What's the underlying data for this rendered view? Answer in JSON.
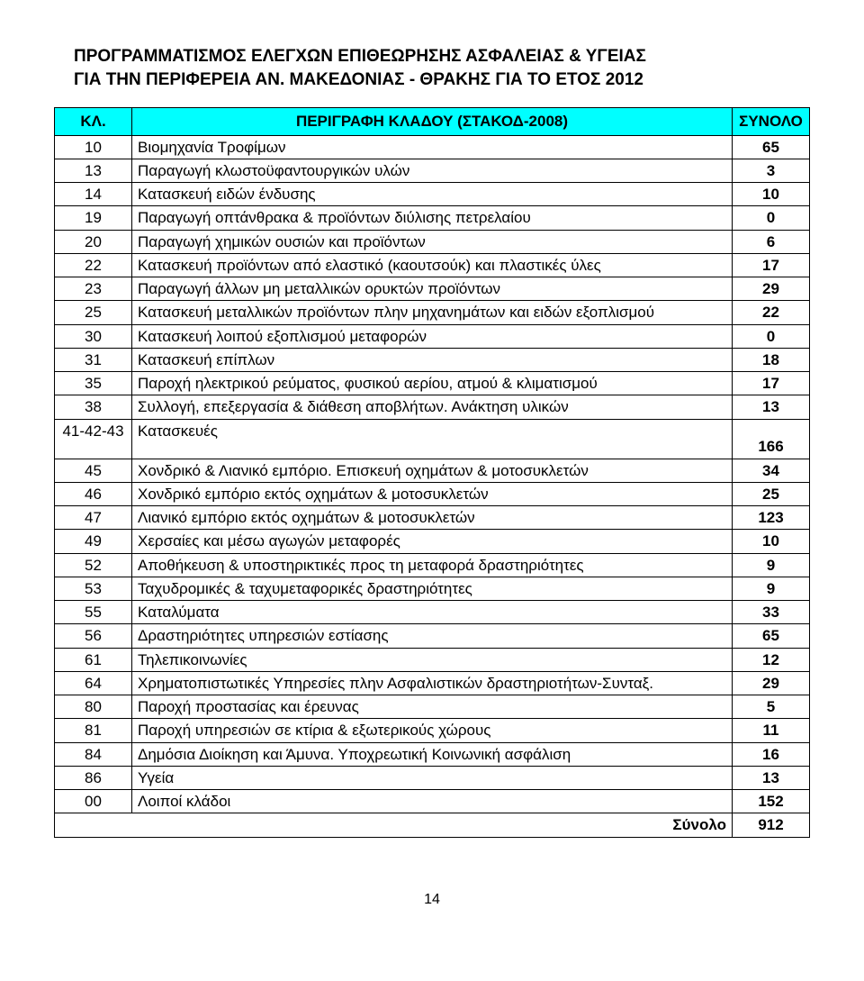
{
  "title_line1": "ΠΡΟΓΡΑΜΜΑΤΙΣΜΟΣ ΕΛΕΓΧΩΝ ΕΠΙΘΕΩΡΗΣΗΣ ΑΣΦΑΛΕΙΑΣ & ΥΓΕΙΑΣ",
  "title_line2": "ΓΙΑ ΤΗΝ ΠΕΡΙΦΕΡΕΙΑ ΑΝ. ΜΑΚΕΔΟΝΙΑΣ - ΘΡΑΚΗΣ ΓΙΑ ΤΟ ΕΤΟΣ 2012",
  "headers": {
    "kl": "ΚΛ.",
    "desc": "ΠΕΡΙΓΡΑΦΗ ΚΛΑΔΟΥ (ΣΤΑΚΟΔ-2008)",
    "total": "ΣΥΝΟΛΟ"
  },
  "rows": [
    {
      "code": "10",
      "desc": "Βιομηχανία Τροφίμων",
      "val": "65"
    },
    {
      "code": "13",
      "desc": "Παραγωγή κλωστοϋφαντουργικών υλών",
      "val": "3"
    },
    {
      "code": "14",
      "desc": "Κατασκευή ειδών ένδυσης",
      "val": "10"
    },
    {
      "code": "19",
      "desc": "Παραγωγή οπτάνθρακα & προϊόντων διύλισης πετρελαίου",
      "val": "0"
    },
    {
      "code": "20",
      "desc": "Παραγωγή χημικών ουσιών και προϊόντων",
      "val": "6"
    },
    {
      "code": "22",
      "desc": "Κατασκευή προϊόντων από ελαστικό (καουτσούκ) και πλαστικές ύλες",
      "val": "17"
    },
    {
      "code": "23",
      "desc": "Παραγωγή άλλων μη μεταλλικών ορυκτών προϊόντων",
      "val": "29"
    },
    {
      "code": "25",
      "desc": "Κατασκευή μεταλλικών προϊόντων πλην μηχανημάτων και ειδών εξοπλισμού",
      "val": "22"
    },
    {
      "code": "30",
      "desc": "Κατασκευή λοιπού εξοπλισμού μεταφορών",
      "val": "0"
    },
    {
      "code": "31",
      "desc": "Κατασκευή επίπλων",
      "val": "18"
    },
    {
      "code": "35",
      "desc": "Παροχή ηλεκτρικού ρεύματος, φυσικού αερίου, ατμού & κλιματισμού",
      "val": "17"
    },
    {
      "code": "38",
      "desc": "Συλλογή, επεξεργασία & διάθεση αποβλήτων. Ανάκτηση υλικών",
      "val": "13"
    },
    {
      "code": "41-42-43",
      "desc": "Κατασκευές",
      "val": "166",
      "double": true
    },
    {
      "code": "45",
      "desc": "Χονδρικό & Λιανικό εμπόριο. Επισκευή οχημάτων & μοτοσυκλετών",
      "val": "34"
    },
    {
      "code": "46",
      "desc": "Χονδρικό εμπόριο εκτός οχημάτων & μοτοσυκλετών",
      "val": "25"
    },
    {
      "code": "47",
      "desc": "Λιανικό εμπόριο εκτός οχημάτων & μοτοσυκλετών",
      "val": "123"
    },
    {
      "code": "49",
      "desc": "Χερσαίες και μέσω αγωγών μεταφορές",
      "val": "10"
    },
    {
      "code": "52",
      "desc": "Αποθήκευση & υποστηρικτικές προς τη μεταφορά δραστηριότητες",
      "val": "9"
    },
    {
      "code": "53",
      "desc": "Ταχυδρομικές & ταχυμεταφορικές δραστηριότητες",
      "val": "9"
    },
    {
      "code": "55",
      "desc": "Καταλύματα",
      "val": "33"
    },
    {
      "code": "56",
      "desc": "Δραστηριότητες υπηρεσιών εστίασης",
      "val": "65"
    },
    {
      "code": "61",
      "desc": "Τηλεπικοινωνίες",
      "val": "12"
    },
    {
      "code": "64",
      "desc": "Χρηματοπιστωτικές Υπηρεσίες πλην Ασφαλιστικών δραστηριοτήτων-Συνταξ.",
      "val": "29"
    },
    {
      "code": "80",
      "desc": "Παροχή προστασίας και έρευνας",
      "val": "5"
    },
    {
      "code": "81",
      "desc": "Παροχή υπηρεσιών σε κτίρια & εξωτερικούς χώρους",
      "val": "11"
    },
    {
      "code": "84",
      "desc": "Δημόσια Διοίκηση και Άμυνα. Υποχρεωτική Κοινωνική ασφάλιση",
      "val": "16"
    },
    {
      "code": "86",
      "desc": "Υγεία",
      "val": "13"
    },
    {
      "code": "00",
      "desc": "Λοιποί κλάδοι",
      "val": "152"
    }
  ],
  "total_label": "Σύνολο",
  "total_value": "912",
  "page_number": "14"
}
